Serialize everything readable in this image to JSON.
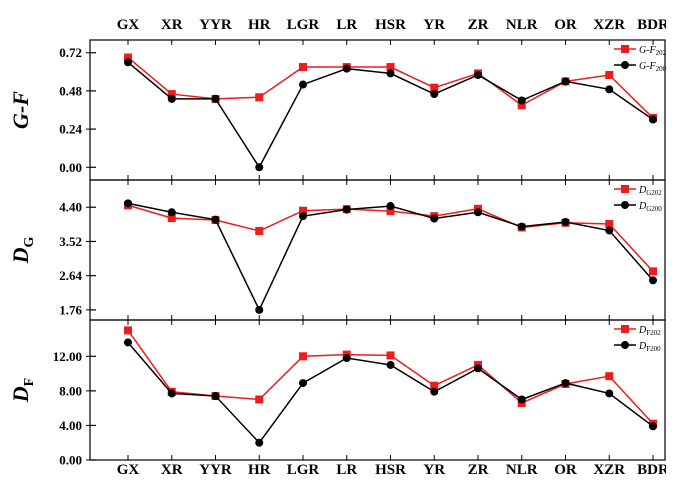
{
  "colors": {
    "series_a": "#ee1c1c",
    "series_b": "#000000",
    "axis": "#000000"
  },
  "chart_data": [
    {
      "type": "line",
      "categories": [
        "GX",
        "XR",
        "YYR",
        "HR",
        "LGR",
        "LR",
        "HSR",
        "YR",
        "ZR",
        "NLR",
        "OR",
        "XZR",
        "BDR"
      ],
      "ylabel": "G-F",
      "ylabel_parts": [
        {
          "t": "G-F",
          "sub": false
        }
      ],
      "yticks": [
        "0.00",
        "0.24",
        "0.48",
        "0.72"
      ],
      "ylim": [
        -0.08,
        0.8
      ],
      "legend_position": "top-right",
      "series": [
        {
          "name": "G-F202",
          "legend_base": "G-F",
          "legend_sub": "202",
          "color": "#ee1c1c",
          "marker": "square",
          "values": [
            0.69,
            0.46,
            0.43,
            0.44,
            0.63,
            0.63,
            0.63,
            0.5,
            0.59,
            0.39,
            0.54,
            0.58,
            0.31
          ]
        },
        {
          "name": "G-F200",
          "legend_base": "G-F",
          "legend_sub": "200",
          "color": "#000000",
          "marker": "circle",
          "values": [
            0.66,
            0.43,
            0.43,
            0.0,
            0.52,
            0.62,
            0.59,
            0.46,
            0.58,
            0.42,
            0.54,
            0.49,
            0.3
          ]
        }
      ]
    },
    {
      "type": "line",
      "categories": [
        "GX",
        "XR",
        "YYR",
        "HR",
        "LGR",
        "LR",
        "HSR",
        "YR",
        "ZR",
        "NLR",
        "OR",
        "XZR",
        "BDR"
      ],
      "ylabel": "DG",
      "ylabel_parts": [
        {
          "t": "D",
          "sub": false
        },
        {
          "t": "G",
          "sub": true
        }
      ],
      "yticks": [
        "1.76",
        "2.64",
        "3.52",
        "4.40"
      ],
      "ylim": [
        1.5,
        5.1
      ],
      "legend_position": "top-right",
      "series": [
        {
          "name": "DG202",
          "legend_base": "D",
          "legend_sub": "G202",
          "color": "#ee1c1c",
          "marker": "square",
          "values": [
            4.45,
            4.12,
            4.07,
            3.79,
            4.31,
            4.35,
            4.3,
            4.17,
            4.36,
            3.88,
            4.0,
            3.97,
            2.75
          ]
        },
        {
          "name": "DG200",
          "legend_base": "D",
          "legend_sub": "G200",
          "color": "#000000",
          "marker": "circle",
          "values": [
            4.5,
            4.27,
            4.08,
            1.76,
            4.17,
            4.34,
            4.43,
            4.11,
            4.27,
            3.9,
            4.02,
            3.8,
            2.52
          ]
        }
      ]
    },
    {
      "type": "line",
      "categories": [
        "GX",
        "XR",
        "YYR",
        "HR",
        "LGR",
        "LR",
        "HSR",
        "YR",
        "ZR",
        "NLR",
        "OR",
        "XZR",
        "BDR"
      ],
      "ylabel": "DF",
      "ylabel_parts": [
        {
          "t": "D",
          "sub": false
        },
        {
          "t": "F",
          "sub": true
        }
      ],
      "yticks": [
        "0.00",
        "4.00",
        "8.00",
        "12.00"
      ],
      "ylim": [
        0,
        16.2
      ],
      "legend_position": "top-right",
      "series": [
        {
          "name": "DF202",
          "legend_base": "D",
          "legend_sub": "F202",
          "color": "#ee1c1c",
          "marker": "square",
          "values": [
            15.0,
            7.9,
            7.4,
            7.0,
            12.0,
            12.2,
            12.1,
            8.6,
            11.0,
            6.6,
            8.8,
            9.7,
            4.2
          ]
        },
        {
          "name": "DF200",
          "legend_base": "D",
          "legend_sub": "F200",
          "color": "#000000",
          "marker": "circle",
          "values": [
            13.6,
            7.7,
            7.4,
            2.0,
            8.9,
            11.8,
            11.0,
            7.9,
            10.6,
            7.0,
            8.9,
            7.7,
            3.9
          ]
        }
      ]
    }
  ]
}
